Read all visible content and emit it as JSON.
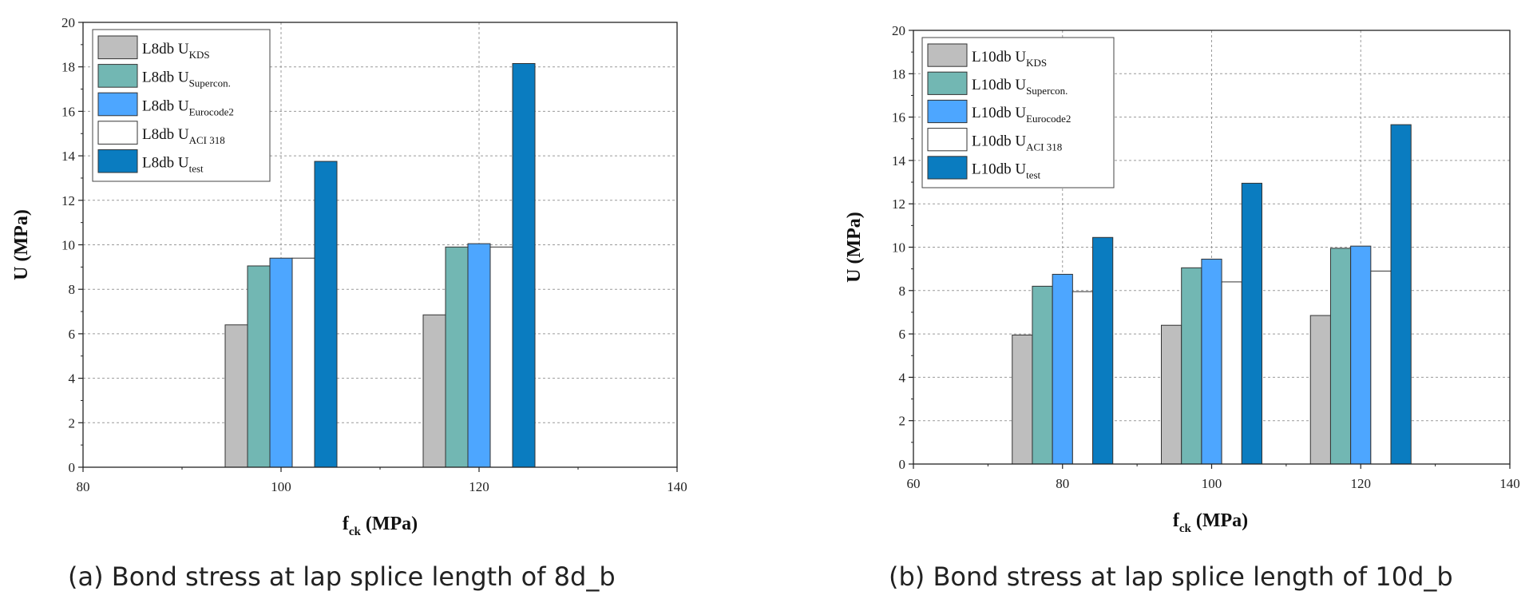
{
  "chart_data": [
    {
      "type": "bar",
      "xlabel": "f",
      "xlabel_sub": "ck",
      "xlabel_unit": " (MPa)",
      "ylabel": "U (MPa)",
      "xlim": [
        80,
        140
      ],
      "ylim": [
        0,
        20
      ],
      "xticks": [
        80,
        100,
        120,
        140
      ],
      "yticks": [
        0,
        2,
        4,
        6,
        8,
        10,
        12,
        14,
        16,
        18,
        20
      ],
      "categories": [
        100,
        120
      ],
      "grid": true,
      "legend_position": "top-left",
      "caption": "(a) Bond stress at lap splice length of 8d_b",
      "series": [
        {
          "name": "L8db U",
          "sub": "KDS",
          "color": "#bebebe",
          "values": [
            6.4,
            6.85
          ]
        },
        {
          "name": "L8db U",
          "sub": "Supercon.",
          "color": "#72b7b3",
          "values": [
            9.05,
            9.9
          ]
        },
        {
          "name": "L8db U",
          "sub": "Eurocode2",
          "color": "#4da6ff",
          "values": [
            9.4,
            10.05
          ]
        },
        {
          "name": "L8db U",
          "sub": "ACI 318",
          "color": "#ffffff",
          "values": [
            9.4,
            9.9
          ]
        },
        {
          "name": "L8db U",
          "sub": "test",
          "color": "#0a7cc0",
          "values": [
            13.75,
            18.15
          ]
        }
      ]
    },
    {
      "type": "bar",
      "xlabel": "f",
      "xlabel_sub": "ck",
      "xlabel_unit": " (MPa)",
      "ylabel": "U (MPa)",
      "xlim": [
        60,
        140
      ],
      "ylim": [
        0,
        20
      ],
      "xticks": [
        60,
        80,
        100,
        120,
        140
      ],
      "yticks": [
        0,
        2,
        4,
        6,
        8,
        10,
        12,
        14,
        16,
        18,
        20
      ],
      "categories": [
        80,
        100,
        120
      ],
      "grid": true,
      "legend_position": "top-left",
      "caption": "(b) Bond stress at lap splice length of 10d_b",
      "series": [
        {
          "name": "L10db U",
          "sub": "KDS",
          "color": "#bebebe",
          "values": [
            5.95,
            6.4,
            6.85
          ]
        },
        {
          "name": "L10db U",
          "sub": "Supercon.",
          "color": "#72b7b3",
          "values": [
            8.2,
            9.05,
            9.95
          ]
        },
        {
          "name": "L10db U",
          "sub": "Eurocode2",
          "color": "#4da6ff",
          "values": [
            8.75,
            9.45,
            10.05
          ]
        },
        {
          "name": "L10db U",
          "sub": "ACI 318",
          "color": "#ffffff",
          "values": [
            7.95,
            8.4,
            8.9
          ]
        },
        {
          "name": "L10db U",
          "sub": "test",
          "color": "#0a7cc0",
          "values": [
            10.45,
            12.95,
            15.65
          ]
        }
      ]
    }
  ]
}
